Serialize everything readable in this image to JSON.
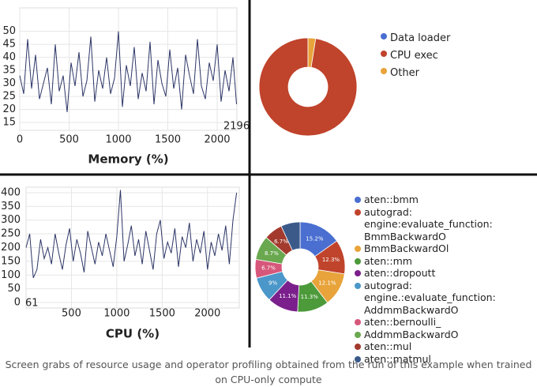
{
  "chart_data": [
    {
      "type": "line",
      "xlabel": "Memory (%)",
      "annotation": "2196",
      "color": "#2c3566",
      "grid": true,
      "x": [
        0,
        40,
        80,
        120,
        160,
        200,
        240,
        280,
        320,
        360,
        400,
        440,
        480,
        520,
        560,
        600,
        640,
        680,
        720,
        760,
        800,
        840,
        880,
        920,
        960,
        1000,
        1040,
        1080,
        1120,
        1160,
        1200,
        1240,
        1280,
        1320,
        1360,
        1400,
        1440,
        1480,
        1520,
        1560,
        1600,
        1640,
        1680,
        1720,
        1760,
        1800,
        1840,
        1880,
        1920,
        1960,
        2000,
        2040,
        2080,
        2120,
        2160,
        2196
      ],
      "values": [
        33,
        26,
        47,
        28,
        41,
        24,
        30,
        36,
        22,
        45,
        27,
        33,
        19,
        38,
        29,
        42,
        25,
        31,
        48,
        23,
        35,
        28,
        40,
        26,
        32,
        50,
        21,
        37,
        29,
        44,
        24,
        34,
        27,
        46,
        22,
        39,
        30,
        25,
        43,
        28,
        36,
        20,
        41,
        33,
        26,
        47,
        29,
        24,
        38,
        31,
        45,
        23,
        35,
        27,
        40,
        22
      ],
      "xlim": [
        0,
        2200
      ],
      "ylim": [
        12,
        59
      ],
      "xticks": [
        0,
        500,
        1000,
        1500,
        2000
      ],
      "yticks": [
        15,
        20,
        25,
        30,
        35,
        40,
        45,
        50
      ]
    },
    {
      "type": "pie",
      "categories": [
        "Data loader",
        "CPU exec",
        "Other"
      ],
      "values": [
        0,
        97.5,
        2.5
      ],
      "value_labels": [
        null,
        "97.5%",
        null
      ],
      "colors": [
        "#4a6fd1",
        "#c0432b",
        "#e8a33a"
      ]
    },
    {
      "type": "line",
      "xlabel": "CPU (%)",
      "annotation": "61",
      "color": "#2c3566",
      "grid": true,
      "x": [
        0,
        40,
        80,
        120,
        160,
        200,
        240,
        280,
        320,
        360,
        400,
        440,
        480,
        520,
        560,
        600,
        640,
        680,
        720,
        760,
        800,
        840,
        880,
        920,
        960,
        1000,
        1040,
        1080,
        1120,
        1160,
        1200,
        1240,
        1280,
        1320,
        1360,
        1400,
        1440,
        1480,
        1520,
        1560,
        1600,
        1640,
        1680,
        1720,
        1760,
        1800,
        1840,
        1880,
        1920,
        1960,
        2000,
        2040,
        2080,
        2120,
        2160,
        2200,
        2240,
        2280,
        2320
      ],
      "values": [
        200,
        250,
        90,
        120,
        230,
        160,
        200,
        140,
        250,
        180,
        120,
        210,
        270,
        150,
        230,
        180,
        110,
        260,
        200,
        140,
        220,
        170,
        250,
        190,
        130,
        240,
        410,
        150,
        210,
        280,
        170,
        230,
        140,
        260,
        190,
        120,
        250,
        300,
        160,
        220,
        180,
        270,
        130,
        240,
        200,
        290,
        150,
        230,
        180,
        260,
        120,
        220,
        170,
        250,
        190,
        280,
        140,
        300,
        400
      ],
      "xlim": [
        0,
        2350
      ],
      "ylim": [
        -20,
        420
      ],
      "xticks": [
        500,
        1000,
        1500,
        2000
      ],
      "yticks": [
        0,
        50,
        100,
        150,
        200,
        250,
        300,
        350,
        400
      ]
    },
    {
      "type": "pie",
      "categories": [
        "aten::bmm",
        "autograd: engine:evaluate_function: BmmBackwardO",
        "BmmBackwardOl",
        "aten::mm",
        "aten::dropoutt",
        "autograd: engine.:evaluate_function: AddmmBackwardO",
        "aten::bernoulli_",
        "AddmmBackwardO",
        "aten::mul",
        "aten::matmul"
      ],
      "values": [
        15.2,
        12.3,
        12.1,
        11.3,
        11.1,
        9,
        6.7,
        8.7,
        6.7,
        6.9
      ],
      "value_labels": [
        "15.2%",
        "12.3%",
        "12.1%",
        "11.3%",
        "11.1%",
        "9%",
        "6.7%",
        "8.7%",
        "6.7%",
        null
      ],
      "colors": [
        "#4a6fd1",
        "#c0432b",
        "#e8a33a",
        "#4c9a3a",
        "#7b1f8c",
        "#4b97c9",
        "#d6577a",
        "#6aa84f",
        "#a33a2d",
        "#3b5a8a"
      ]
    }
  ],
  "caption": "Screen grabs of resource usage and operator profiling obtained from the run of this example when trained on CPU-only compute"
}
